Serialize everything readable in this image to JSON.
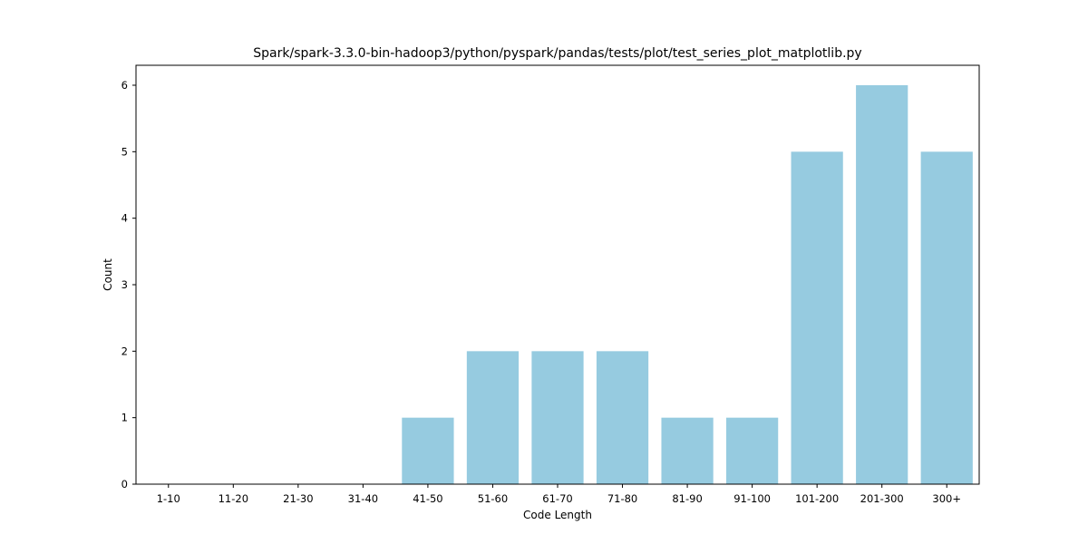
{
  "chart_data": {
    "type": "bar",
    "title": "Spark/spark-3.3.0-bin-hadoop3/python/pyspark/pandas/tests/plot/test_series_plot_matplotlib.py",
    "xlabel": "Code Length",
    "ylabel": "Count",
    "categories": [
      "1-10",
      "11-20",
      "21-30",
      "31-40",
      "41-50",
      "51-60",
      "61-70",
      "71-80",
      "81-90",
      "91-100",
      "101-200",
      "201-300",
      "300+"
    ],
    "values": [
      0,
      0,
      0,
      0,
      1,
      2,
      2,
      2,
      1,
      1,
      5,
      6,
      5
    ],
    "yticks": [
      0,
      1,
      2,
      3,
      4,
      5,
      6
    ],
    "ylim": [
      0,
      6.3
    ],
    "bar_color": "#96cbe0",
    "grid": false,
    "legend": "none"
  }
}
